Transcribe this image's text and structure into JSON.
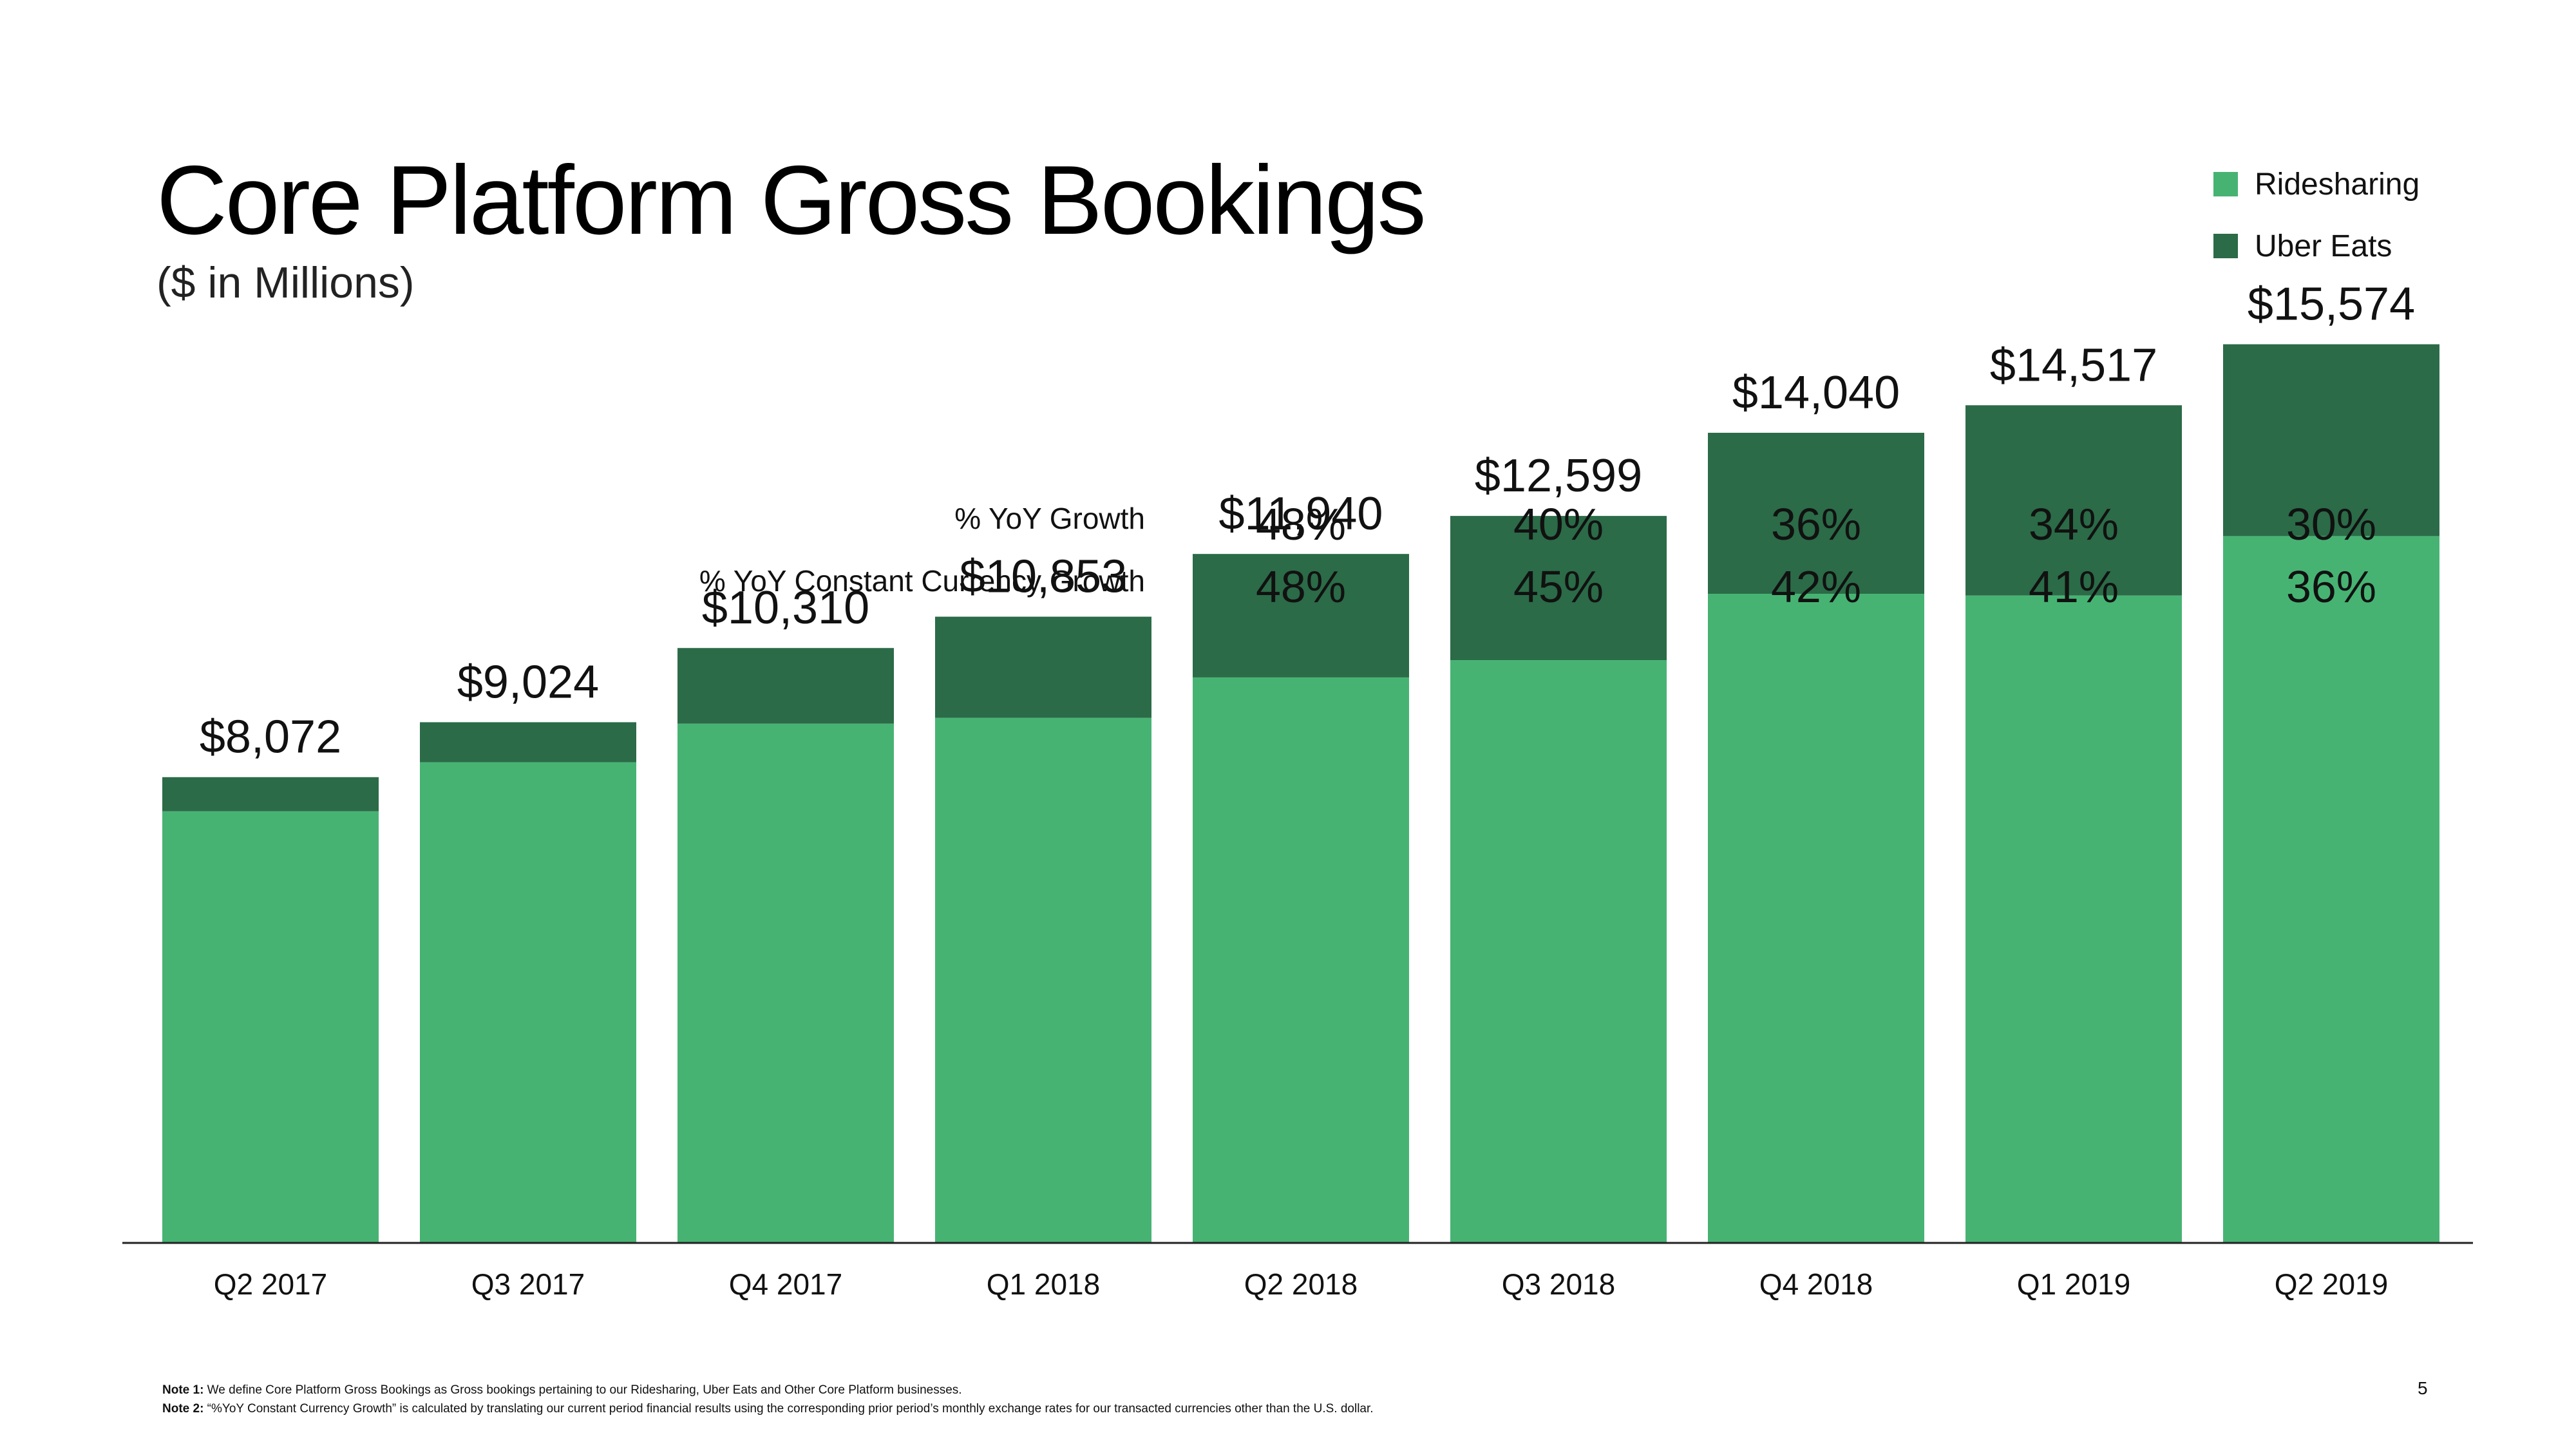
{
  "title": "Core Platform Gross Bookings",
  "subtitle": "($ in Millions)",
  "legend": {
    "items": [
      {
        "label": "Ridesharing",
        "color": "#47b373"
      },
      {
        "label": "Uber Eats",
        "color": "#2b6b47"
      }
    ]
  },
  "growth_labels": {
    "yoy": "% YoY Growth",
    "cc": "% YoY Constant Currency Growth"
  },
  "chart_data": {
    "type": "bar",
    "stacked": true,
    "title": "Core Platform Gross Bookings",
    "ylabel": "($ in Millions)",
    "categories": [
      "Q2 2017",
      "Q3 2017",
      "Q4 2017",
      "Q1 2018",
      "Q2 2018",
      "Q3 2018",
      "Q4 2018",
      "Q1 2019",
      "Q2 2019"
    ],
    "totals": [
      8072,
      9024,
      10310,
      10853,
      11940,
      12599,
      14040,
      14517,
      15574
    ],
    "total_labels": [
      "$8,072",
      "$9,024",
      "$10,310",
      "$10,853",
      "$11,940",
      "$12,599",
      "$14,040",
      "$14,517",
      "$15,574"
    ],
    "series": [
      {
        "name": "Ridesharing",
        "color": "#47b373",
        "values": [
          7480,
          8330,
          9000,
          9100,
          9800,
          10100,
          11250,
          11220,
          12250
        ]
      },
      {
        "name": "Uber Eats",
        "color": "#2b6b47",
        "values": [
          592,
          694,
          1310,
          1753,
          2140,
          2499,
          2790,
          3297,
          3324
        ]
      }
    ],
    "yoy_growth": [
      "",
      "",
      "",
      "",
      "48%",
      "40%",
      "36%",
      "34%",
      "30%"
    ],
    "yoy_cc_growth": [
      "",
      "",
      "",
      "",
      "48%",
      "45%",
      "42%",
      "41%",
      "36%"
    ],
    "ylim": [
      0,
      18000
    ],
    "grid": false
  },
  "notes": [
    {
      "label": "Note 1:",
      "text": " We define Core Platform Gross Bookings as Gross bookings pertaining to our Ridesharing, Uber Eats and Other Core Platform businesses."
    },
    {
      "label": "Note 2:",
      "text": " “%YoY Constant Currency Growth” is calculated by translating our current period financial results using the corresponding prior period’s monthly exchange rates for our transacted currencies other than the U.S. dollar."
    }
  ],
  "page_number": "5"
}
